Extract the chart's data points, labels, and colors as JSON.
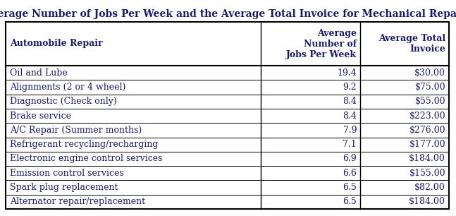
{
  "title": "Average Number of Jobs Per Week and the Average Total Invoice for Mechanical Repairs",
  "col_headers": [
    "Automobile Repair",
    "Average\nNumber of\nJobs Per Week",
    "Average Total\nInvoice"
  ],
  "rows": [
    [
      "Oil and Lube",
      "19.4",
      "$30.00"
    ],
    [
      "Alignments (2 or 4 wheel)",
      "9.2",
      "$75.00"
    ],
    [
      "Diagnostic (Check only)",
      "8.4",
      "$55.00"
    ],
    [
      "Brake service",
      "8.4",
      "$223.00"
    ],
    [
      "A/C Repair (Summer months)",
      "7.9",
      "$276.00"
    ],
    [
      "Refrigerant recycling/recharging",
      "7.1",
      "$177.00"
    ],
    [
      "Electronic engine control services",
      "6.9",
      "$184.00"
    ],
    [
      "Emission control services",
      "6.6",
      "$155.00"
    ],
    [
      "Spark plug replacement",
      "6.5",
      "$82.00"
    ],
    [
      "Alternator repair/replacement",
      "6.5",
      "$184.00"
    ]
  ],
  "title_fontsize": 10.0,
  "header_fontsize": 9.0,
  "data_fontsize": 9.0,
  "text_color": "#1a1a6e",
  "border_color": "#000000",
  "background_color": "#ffffff"
}
